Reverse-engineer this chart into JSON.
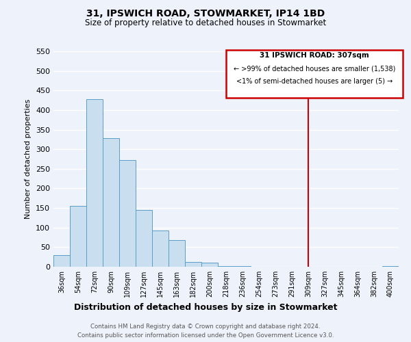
{
  "title": "31, IPSWICH ROAD, STOWMARKET, IP14 1BD",
  "subtitle": "Size of property relative to detached houses in Stowmarket",
  "xlabel": "Distribution of detached houses by size in Stowmarket",
  "ylabel": "Number of detached properties",
  "bar_labels": [
    "36sqm",
    "54sqm",
    "72sqm",
    "90sqm",
    "109sqm",
    "127sqm",
    "145sqm",
    "163sqm",
    "182sqm",
    "200sqm",
    "218sqm",
    "236sqm",
    "254sqm",
    "273sqm",
    "291sqm",
    "309sqm",
    "327sqm",
    "345sqm",
    "364sqm",
    "382sqm",
    "400sqm"
  ],
  "bar_heights": [
    30,
    155,
    427,
    328,
    273,
    145,
    92,
    68,
    12,
    10,
    2,
    1,
    0,
    0,
    0,
    0,
    0,
    0,
    0,
    0,
    2
  ],
  "bar_color": "#c9dff0",
  "bar_edge_color": "#5a9dc8",
  "ylim": [
    0,
    550
  ],
  "yticks": [
    0,
    50,
    100,
    150,
    200,
    250,
    300,
    350,
    400,
    450,
    500,
    550
  ],
  "property_line_x": 15,
  "property_line_color": "#cc0000",
  "annotation_title": "31 IPSWICH ROAD: 307sqm",
  "annotation_line1": "← >99% of detached houses are smaller (1,538)",
  "annotation_line2": "<1% of semi-detached houses are larger (5) →",
  "footer1": "Contains HM Land Registry data © Crown copyright and database right 2024.",
  "footer2": "Contains public sector information licensed under the Open Government Licence v3.0.",
  "background_color": "#eef2fb",
  "grid_color": "#d0d8ee"
}
